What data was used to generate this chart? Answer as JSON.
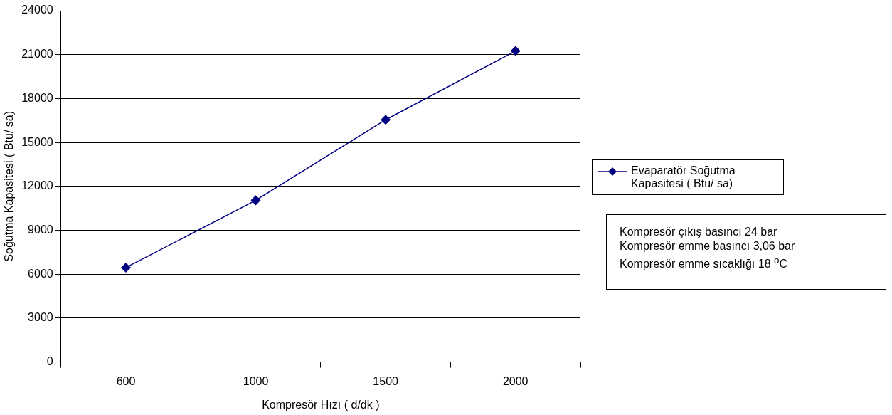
{
  "chart_data": {
    "type": "line",
    "xlabel": "Kompresör Hızı ( d/dk )",
    "ylabel": "Soğutma Kapasitesi ( Btu/ sa)",
    "categories": [
      "600",
      "1000",
      "1500",
      "2000"
    ],
    "series": [
      {
        "name": "Evaparatör Soğutma Kapasitesi ( Btu/ sa)",
        "color": "#000080",
        "values": [
          6450,
          11050,
          16550,
          21250
        ]
      }
    ],
    "ylim": [
      0,
      24000
    ],
    "yticks": [
      0,
      3000,
      6000,
      9000,
      12000,
      15000,
      18000,
      21000,
      24000
    ],
    "grid": "y",
    "legend": "right",
    "marker": "diamond",
    "line_style": "solid",
    "annotations": [
      "Kompresör çıkış basıncı 24 bar",
      "Kompresör emme basıncı 3,06 bar",
      "Kompresör emme sıcaklığı 18 $^{o}$C"
    ]
  }
}
